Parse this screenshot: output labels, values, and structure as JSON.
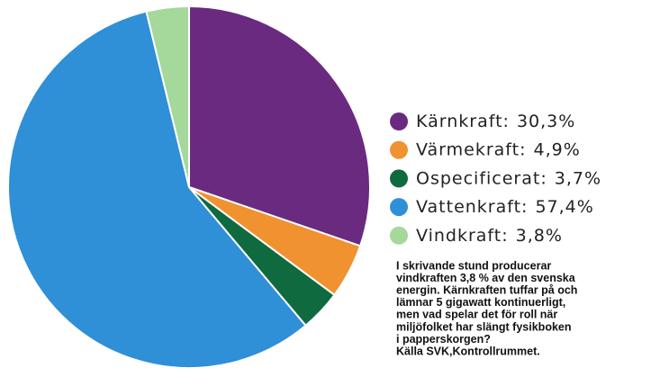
{
  "chart_data": {
    "type": "pie",
    "categories": [
      "Kärnkraft:",
      "Värmekraft:",
      "Ospecificerat:",
      "Vattenkraft:",
      "Vindkraft:"
    ],
    "values": [
      30.3,
      4.9,
      3.7,
      57.4,
      3.8
    ],
    "value_labels": [
      "30,3%",
      "4,9%",
      "3,7%",
      "57,4%",
      "3,8%"
    ],
    "colors": [
      "#6a2a80",
      "#f0922f",
      "#0f6a3f",
      "#2f8fd7",
      "#a5d89b"
    ],
    "annotation": [
      "I skrivande stund producerar",
      "vindkraften 3,8 % av den svenska",
      "energin. Kärnkraften tuffar på och",
      "lämnar 5 gigawatt kontinuerligt,",
      "men vad spelar det för roll när",
      "miljöfolket har slängt fysikboken",
      "i papperskorgen?",
      "Källa SVK,Kontrollrummet."
    ]
  }
}
